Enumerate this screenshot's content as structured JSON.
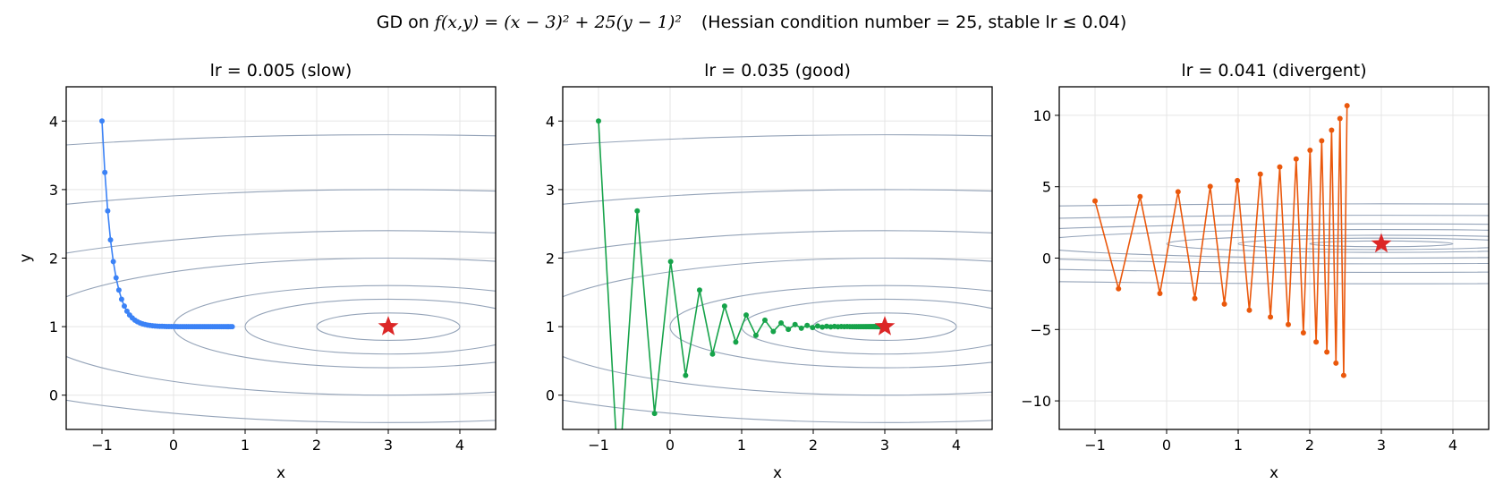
{
  "figure": {
    "suptitle": {
      "prefix": "GD on ",
      "formula": "f(x,y) = (x − 3)² + 25(y − 1)²",
      "suffix": "(Hessian condition number = 25, stable lr ≤ 0.04)"
    }
  },
  "chart_data": [
    {
      "type": "line",
      "title": "lr = 0.005  (slow)",
      "xlabel": "x",
      "ylabel": "y",
      "xlim": [
        -1.5,
        4.5
      ],
      "ylim": [
        -0.5,
        4.5
      ],
      "xticks": [
        -1,
        0,
        1,
        2,
        3,
        4
      ],
      "yticks": [
        0,
        1,
        2,
        3,
        4
      ],
      "grid": true,
      "color": "#3b82f6",
      "minimum": {
        "x": 3,
        "y": 1,
        "marker": "star",
        "color": "#dc2626"
      },
      "series": [
        {
          "x": [
            -1.0,
            -0.96,
            -0.92,
            -0.881,
            -0.842,
            -0.803,
            -0.764,
            -0.726,
            -0.688,
            -0.651,
            -0.614,
            -0.577,
            -0.54,
            -0.504,
            -0.468,
            -0.433,
            -0.398,
            -0.363,
            -0.328,
            -0.294,
            -0.26,
            -0.227,
            -0.193,
            -0.161,
            -0.128,
            -0.096,
            -0.064,
            -0.032,
            0.0,
            0.031,
            0.061,
            0.092,
            0.122,
            0.152,
            0.181,
            0.21,
            0.24,
            0.268,
            0.297,
            0.325,
            0.353,
            0.381,
            0.409,
            0.436,
            0.463,
            0.49,
            0.517,
            0.543,
            0.569,
            0.595,
            0.621,
            0.647,
            0.672,
            0.697,
            0.722,
            0.747,
            0.771,
            0.796,
            0.82
          ],
          "y": [
            4.0,
            3.25,
            2.688,
            2.266,
            1.949,
            1.712,
            1.534,
            1.4,
            1.3,
            1.225,
            1.169,
            1.127,
            1.095,
            1.071,
            1.053,
            1.04,
            1.03,
            1.023,
            1.017,
            1.013,
            1.01,
            1.007,
            1.005,
            1.004,
            1.003,
            1.002,
            1.002,
            1.001,
            1.001,
            1.001,
            1.0,
            1.0,
            1.0,
            1.0,
            1.0,
            1.0,
            1.0,
            1.0,
            1.0,
            1.0,
            1.0,
            1.0,
            1.0,
            1.0,
            1.0,
            1.0,
            1.0,
            1.0,
            1.0,
            1.0,
            1.0,
            1.0,
            1.0,
            1.0,
            1.0,
            1.0,
            1.0,
            1.0,
            1.0
          ]
        }
      ]
    },
    {
      "type": "line",
      "title": "lr = 0.035  (good)",
      "xlabel": "x",
      "ylabel": "",
      "xlim": [
        -1.5,
        4.5
      ],
      "ylim": [
        -0.5,
        4.5
      ],
      "xticks": [
        -1,
        0,
        1,
        2,
        3,
        4
      ],
      "yticks": [
        0,
        1,
        2,
        3,
        4
      ],
      "grid": true,
      "color": "#16a34a",
      "minimum": {
        "x": 3,
        "y": 1,
        "marker": "star",
        "color": "#dc2626"
      },
      "series": [
        {
          "x": [
            -1.0,
            -0.72,
            -0.459,
            -0.217,
            0.008,
            0.217,
            0.412,
            0.593,
            0.761,
            0.918,
            1.063,
            1.199,
            1.325,
            1.442,
            1.551,
            1.652,
            1.746,
            1.834,
            1.915,
            1.991,
            2.062,
            2.127,
            2.188,
            2.245,
            2.297,
            2.346,
            2.392,
            2.434,
            2.474,
            2.511,
            2.545,
            2.577,
            2.606,
            2.634,
            2.659,
            2.683,
            2.705,
            2.726,
            2.745,
            2.763,
            2.78,
            2.795,
            2.809,
            2.823,
            2.835,
            2.847,
            2.857,
            2.867,
            2.877,
            2.885,
            2.893,
            2.901,
            2.908,
            2.914,
            2.92,
            2.926,
            2.931,
            2.936,
            2.94,
            2.944
          ],
          "y": [
            4.0,
            -1.25,
            2.688,
            -0.266,
            1.949,
            0.288,
            1.534,
            0.6,
            1.3,
            0.775,
            1.169,
            0.873,
            1.095,
            0.929,
            1.053,
            0.96,
            1.03,
            0.977,
            1.017,
            0.987,
            1.01,
            0.993,
            1.005,
            0.996,
            1.003,
            0.998,
            1.002,
            0.999,
            1.001,
            0.999,
            1.0,
            1.0,
            1.0,
            1.0,
            1.0,
            1.0,
            1.0,
            1.0,
            1.0,
            1.0,
            1.0,
            1.0,
            1.0,
            1.0,
            1.0,
            1.0,
            1.0,
            1.0,
            1.0,
            1.0,
            1.0,
            1.0,
            1.0,
            1.0,
            1.0,
            1.0,
            1.0,
            1.0,
            1.0,
            1.0
          ]
        }
      ]
    },
    {
      "type": "line",
      "title": "lr = 0.041  (divergent)",
      "xlabel": "x",
      "ylabel": "",
      "xlim": [
        -1.5,
        4.5
      ],
      "ylim": [
        -12,
        12
      ],
      "xticks": [
        -1,
        0,
        1,
        2,
        3,
        4
      ],
      "yticks": [
        -10,
        -5,
        0,
        5,
        10
      ],
      "grid": true,
      "color": "#ea580c",
      "minimum": {
        "x": 3,
        "y": 1,
        "marker": "star",
        "color": "#dc2626"
      },
      "series": [
        {
          "x": [
            -1.0,
            -0.672,
            -0.371,
            -0.094,
            0.16,
            0.394,
            0.609,
            0.807,
            0.989,
            1.156,
            1.309,
            1.451,
            1.581,
            1.7,
            1.81,
            1.911,
            2.004,
            2.089,
            2.167,
            2.239,
            2.305,
            2.366,
            2.422,
            2.474,
            2.521
          ],
          "y": [
            4.0,
            -2.15,
            4.307,
            -2.472,
            4.646,
            -2.828,
            5.019,
            -3.22,
            5.431,
            -3.653,
            5.886,
            -4.13,
            6.387,
            -4.656,
            6.939,
            -5.236,
            7.548,
            -5.875,
            8.219,
            -6.58,
            8.959,
            -7.357,
            9.775,
            -8.213,
            10.674
          ]
        }
      ]
    }
  ]
}
